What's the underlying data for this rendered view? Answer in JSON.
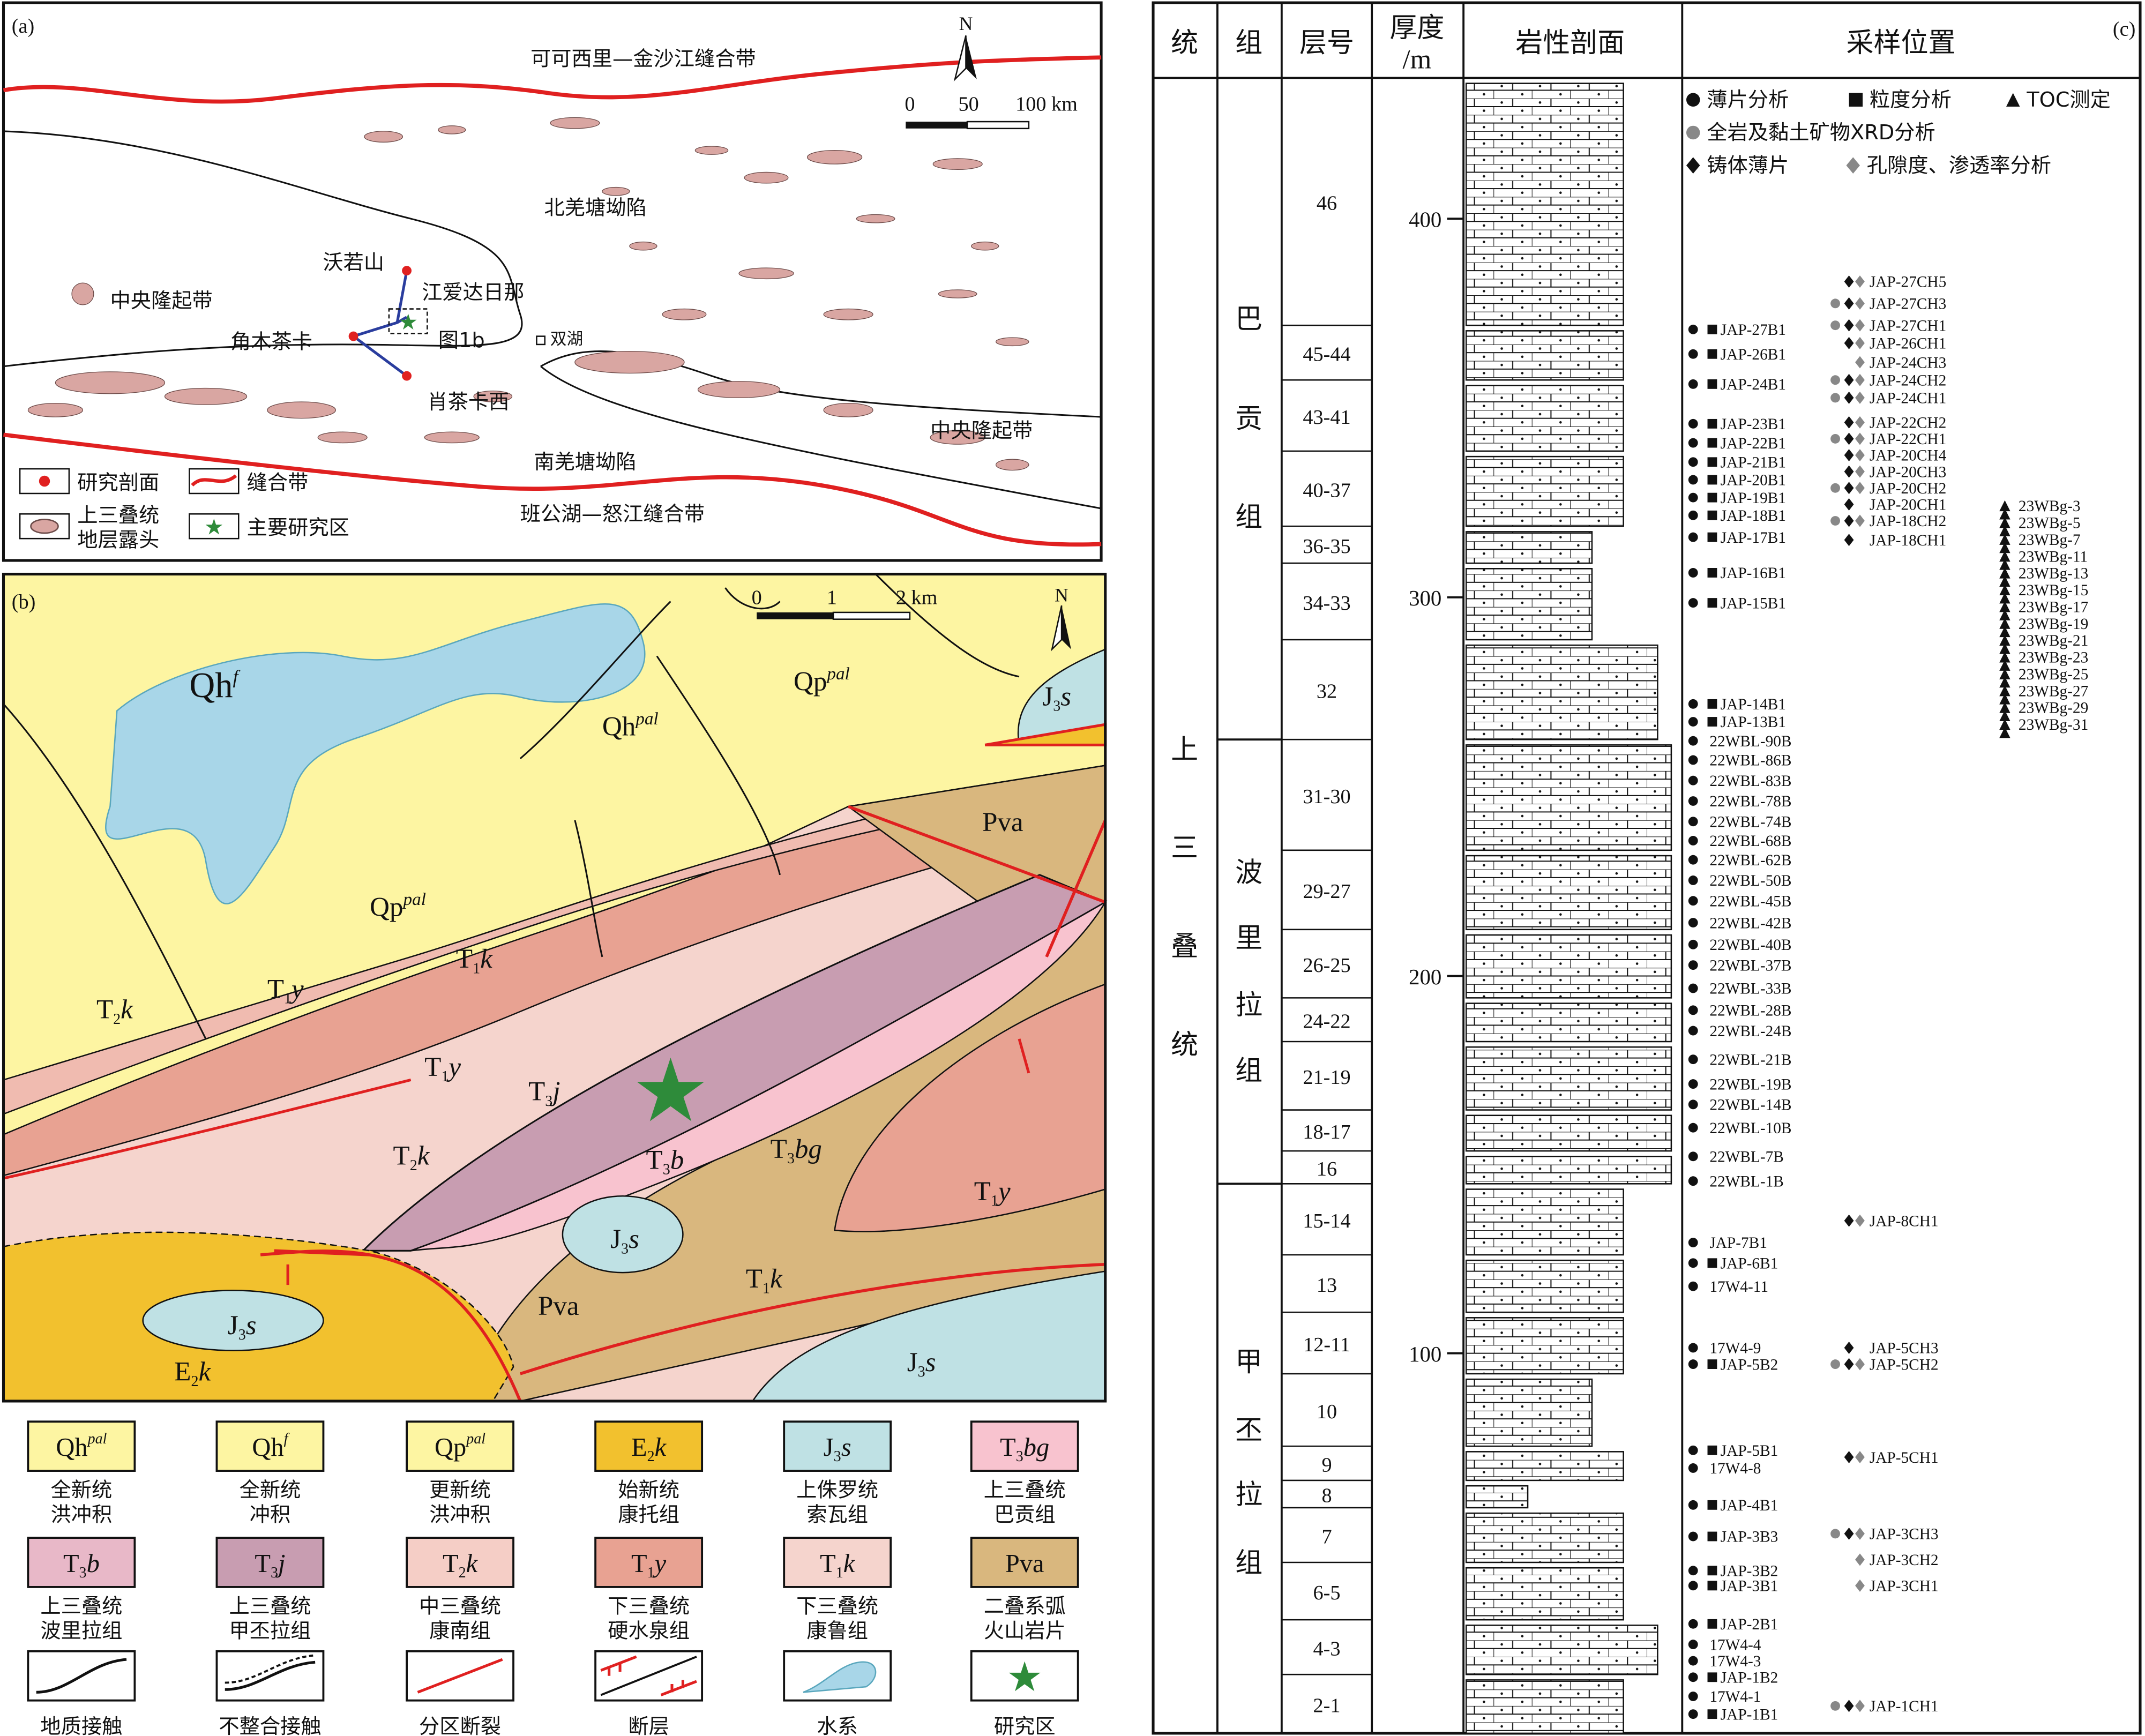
{
  "panel_a": {
    "tag": "(a)",
    "north": "N",
    "scale": [
      "0",
      "50",
      "100 km"
    ],
    "labels": {
      "suture_north": "可可西里—金沙江缝合带",
      "north_depression": "北羌塘坳陷",
      "woruoshan": "沃若山",
      "jiangaidarina": "江爱达日那",
      "central_uplift_west": "中央隆起带",
      "jiaomuchaka": "角木茶卡",
      "fig1b": "图1b",
      "shuanghu": "双湖",
      "xiaochakaxi": "肖茶卡西",
      "central_uplift_east": "中央隆起带",
      "south_depression": "南羌塘坳陷",
      "suture_south": "班公湖—怒江缝合带"
    },
    "legend": {
      "section": "研究剖面",
      "suture": "缝合带",
      "outcrop_1": "上三叠统",
      "outcrop_2": "地层露头",
      "study_area": "主要研究区"
    }
  },
  "panel_b": {
    "tag": "(b)",
    "north": "N",
    "scale": [
      "0",
      "1",
      "2 km"
    ],
    "colors": {
      "quaternary": "#fdf5a2",
      "water": "#a8d6e8",
      "j3s": "#bfe1e4",
      "e2k": "#f2c12e",
      "pva": "#d9b77e",
      "t3bg": "#f8c3cf",
      "t3j": "#c89db1",
      "t3b": "#e8b8c8",
      "t2k": "#f5cec6",
      "t1y": "#e8a292",
      "t1k": "#f5d4cd",
      "star": "#2e8b3a",
      "fault": "#e02020"
    }
  },
  "legend": [
    {
      "base": "Qh",
      "sub": "",
      "sup": "pal",
      "tail": "",
      "fill": "#fdf5a2",
      "l1": "全新统",
      "l2": "洪冲积"
    },
    {
      "base": "Qh",
      "sub": "",
      "sup": "f",
      "tail": "",
      "fill": "#fdf5a2",
      "l1": "全新统",
      "l2": "冲积"
    },
    {
      "base": "Qp",
      "sub": "",
      "sup": "pal",
      "tail": "",
      "fill": "#fdf5a2",
      "l1": "更新统",
      "l2": "洪冲积"
    },
    {
      "base": "E",
      "sub": "2",
      "sup": "",
      "tail": "k",
      "fill": "#f2c12e",
      "l1": "始新统",
      "l2": "康托组"
    },
    {
      "base": "J",
      "sub": "3",
      "sup": "",
      "tail": "s",
      "fill": "#bfe1e4",
      "l1": "上侏罗统",
      "l2": "索瓦组"
    },
    {
      "base": "T",
      "sub": "3",
      "sup": "",
      "tail": "bg",
      "fill": "#f8c3cf",
      "l1": "上三叠统",
      "l2": "巴贡组"
    },
    {
      "base": "T",
      "sub": "3",
      "sup": "",
      "tail": "b",
      "fill": "#e8b8c8",
      "l1": "上三叠统",
      "l2": "波里拉组"
    },
    {
      "base": "T",
      "sub": "3",
      "sup": "",
      "tail": "j",
      "fill": "#c89db1",
      "l1": "上三叠统",
      "l2": "甲丕拉组"
    },
    {
      "base": "T",
      "sub": "2",
      "sup": "",
      "tail": "k",
      "fill": "#f5cec6",
      "l1": "中三叠统",
      "l2": "康南组"
    },
    {
      "base": "T",
      "sub": "1",
      "sup": "",
      "tail": "y",
      "fill": "#e8a292",
      "l1": "下三叠统",
      "l2": "硬水泉组"
    },
    {
      "base": "T",
      "sub": "1",
      "sup": "",
      "tail": "k",
      "fill": "#f5d4cd",
      "l1": "下三叠统",
      "l2": "康鲁组"
    },
    {
      "base": "Pva",
      "sub": "",
      "sup": "",
      "tail": "",
      "fill": "#d9b77e",
      "l1": "二叠系弧",
      "l2": "火山岩片"
    },
    {
      "symbol": "contact",
      "l1": "",
      "l2": "地质接触"
    },
    {
      "symbol": "unconformity",
      "l1": "",
      "l2": "不整合接触"
    },
    {
      "symbol": "zone-fault",
      "l1": "",
      "l2": "分区断裂"
    },
    {
      "symbol": "fault",
      "l1": "",
      "l2": "断层"
    },
    {
      "symbol": "water",
      "l1": "",
      "l2": "水系"
    },
    {
      "symbol": "star",
      "l1": "",
      "l2": "研究区"
    }
  ],
  "panel_c": {
    "tag": "(c)",
    "headers": {
      "series": "统",
      "formation": "组",
      "layer": "层号",
      "thickness_1": "厚度",
      "thickness_2": "/m",
      "lithology": "岩性剖面",
      "sampling": "采样位置"
    },
    "series_name": [
      "上",
      "三",
      "叠",
      "统"
    ],
    "formations": [
      {
        "name": [
          "巴",
          "贡",
          "组"
        ]
      },
      {
        "name": [
          "波",
          "里",
          "拉",
          "组"
        ]
      },
      {
        "name": [
          "甲",
          "丕",
          "拉",
          "组"
        ]
      }
    ],
    "layers": [
      "46",
      "45-44",
      "43-41",
      "40-37",
      "36-35",
      "34-33",
      "32",
      "31-30",
      "29-27",
      "26-25",
      "24-22",
      "21-19",
      "18-17",
      "16",
      "15-14",
      "13",
      "12-11",
      "10",
      "9",
      "8",
      "7",
      "6-5",
      "4-3",
      "2-1"
    ],
    "thickness_ticks": [
      "400",
      "300",
      "200",
      "100"
    ],
    "sample_legend": {
      "thin_section": "薄片分析",
      "grain_size": "粒度分析",
      "toc": "TOC测定",
      "xrd": "全岩及黏土矿物XRD分析",
      "cast_thin": "铸体薄片",
      "porosity": "孔隙度、渗透率分析"
    },
    "samples_left": [
      "JAP-27B1",
      "JAP-26B1",
      "JAP-24B1",
      "JAP-23B1",
      "JAP-22B1",
      "JAP-21B1",
      "JAP-20B1",
      "JAP-19B1",
      "JAP-18B1",
      "JAP-17B1",
      "JAP-16B1",
      "JAP-15B1",
      "JAP-14B1",
      "JAP-13B1",
      "22WBL-90B",
      "22WBL-86B",
      "22WBL-83B",
      "22WBL-78B",
      "22WBL-74B",
      "22WBL-68B",
      "22WBL-62B",
      "22WBL-50B",
      "22WBL-45B",
      "22WBL-42B",
      "22WBL-40B",
      "22WBL-37B",
      "22WBL-33B",
      "22WBL-28B",
      "22WBL-24B",
      "22WBL-21B",
      "22WBL-19B",
      "22WBL-14B",
      "22WBL-10B",
      "22WBL-7B",
      "22WBL-1B",
      "JAP-7B1",
      "JAP-6B1",
      "17W4-11",
      "17W4-9",
      "JAP-5B2",
      "JAP-5B1",
      "17W4-8",
      "JAP-4B1",
      "JAP-3B3",
      "JAP-3B2",
      "JAP-3B1",
      "JAP-2B1",
      "17W4-4",
      "17W4-3",
      "JAP-1B2",
      "17W4-1",
      "JAP-1B1"
    ],
    "samples_mid": [
      "JAP-27CH5",
      "JAP-27CH3",
      "JAP-27CH1",
      "JAP-26CH1",
      "JAP-24CH3",
      "JAP-24CH2",
      "JAP-24CH1",
      "JAP-22CH2",
      "JAP-22CH1",
      "JAP-20CH4",
      "JAP-20CH3",
      "JAP-20CH2",
      "JAP-20CH1",
      "JAP-18CH2",
      "JAP-18CH1",
      "JAP-8CH1",
      "JAP-5CH3",
      "JAP-5CH2",
      "JAP-5CH1",
      "JAP-3CH3",
      "JAP-3CH2",
      "JAP-3CH1",
      "JAP-1CH1"
    ],
    "samples_right": [
      "23WBg-3",
      "23WBg-5",
      "23WBg-7",
      "23WBg-11",
      "23WBg-13",
      "23WBg-15",
      "23WBg-17",
      "23WBg-19",
      "23WBg-21",
      "23WBg-23",
      "23WBg-25",
      "23WBg-27",
      "23WBg-29",
      "23WBg-31"
    ]
  }
}
